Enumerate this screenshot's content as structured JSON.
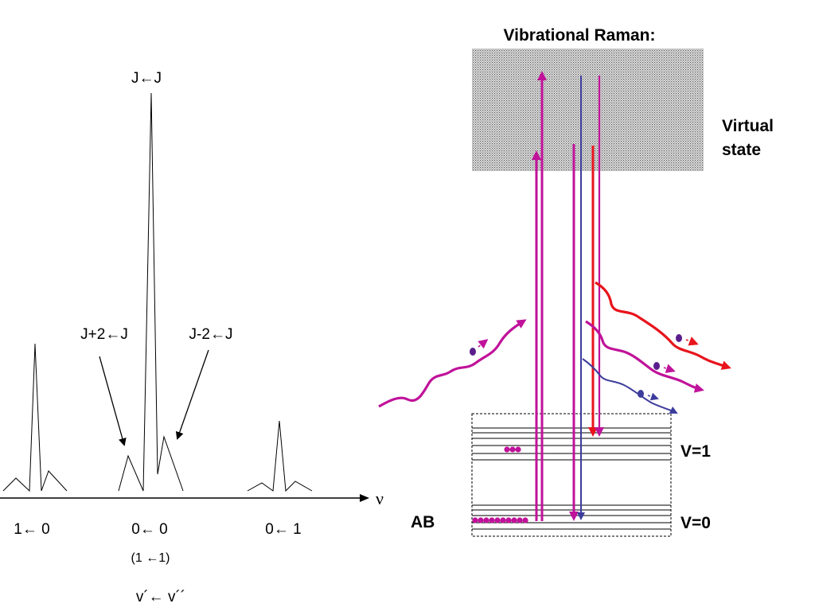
{
  "left_spectrum": {
    "peak_label": "J←J",
    "side_label_left": "J+2←J",
    "side_label_right": "J-2←J",
    "axis_symbol": "ν",
    "band_labels": [
      "1← 0",
      "0← 0",
      "0← 1"
    ],
    "center_sub_label": "(1 ←1)",
    "bottom_label": "v´← v´´"
  },
  "right_diagram": {
    "title": "Vibrational Raman:",
    "virtual_state_line1": "Virtual",
    "virtual_state_line2": "state",
    "level_v1": "V=1",
    "level_v0": "V=0",
    "molecule": "AB"
  },
  "colors": {
    "magenta": "#c0129a",
    "red": "#e8141c",
    "blue": "#3c3c9c",
    "black": "#000000"
  }
}
